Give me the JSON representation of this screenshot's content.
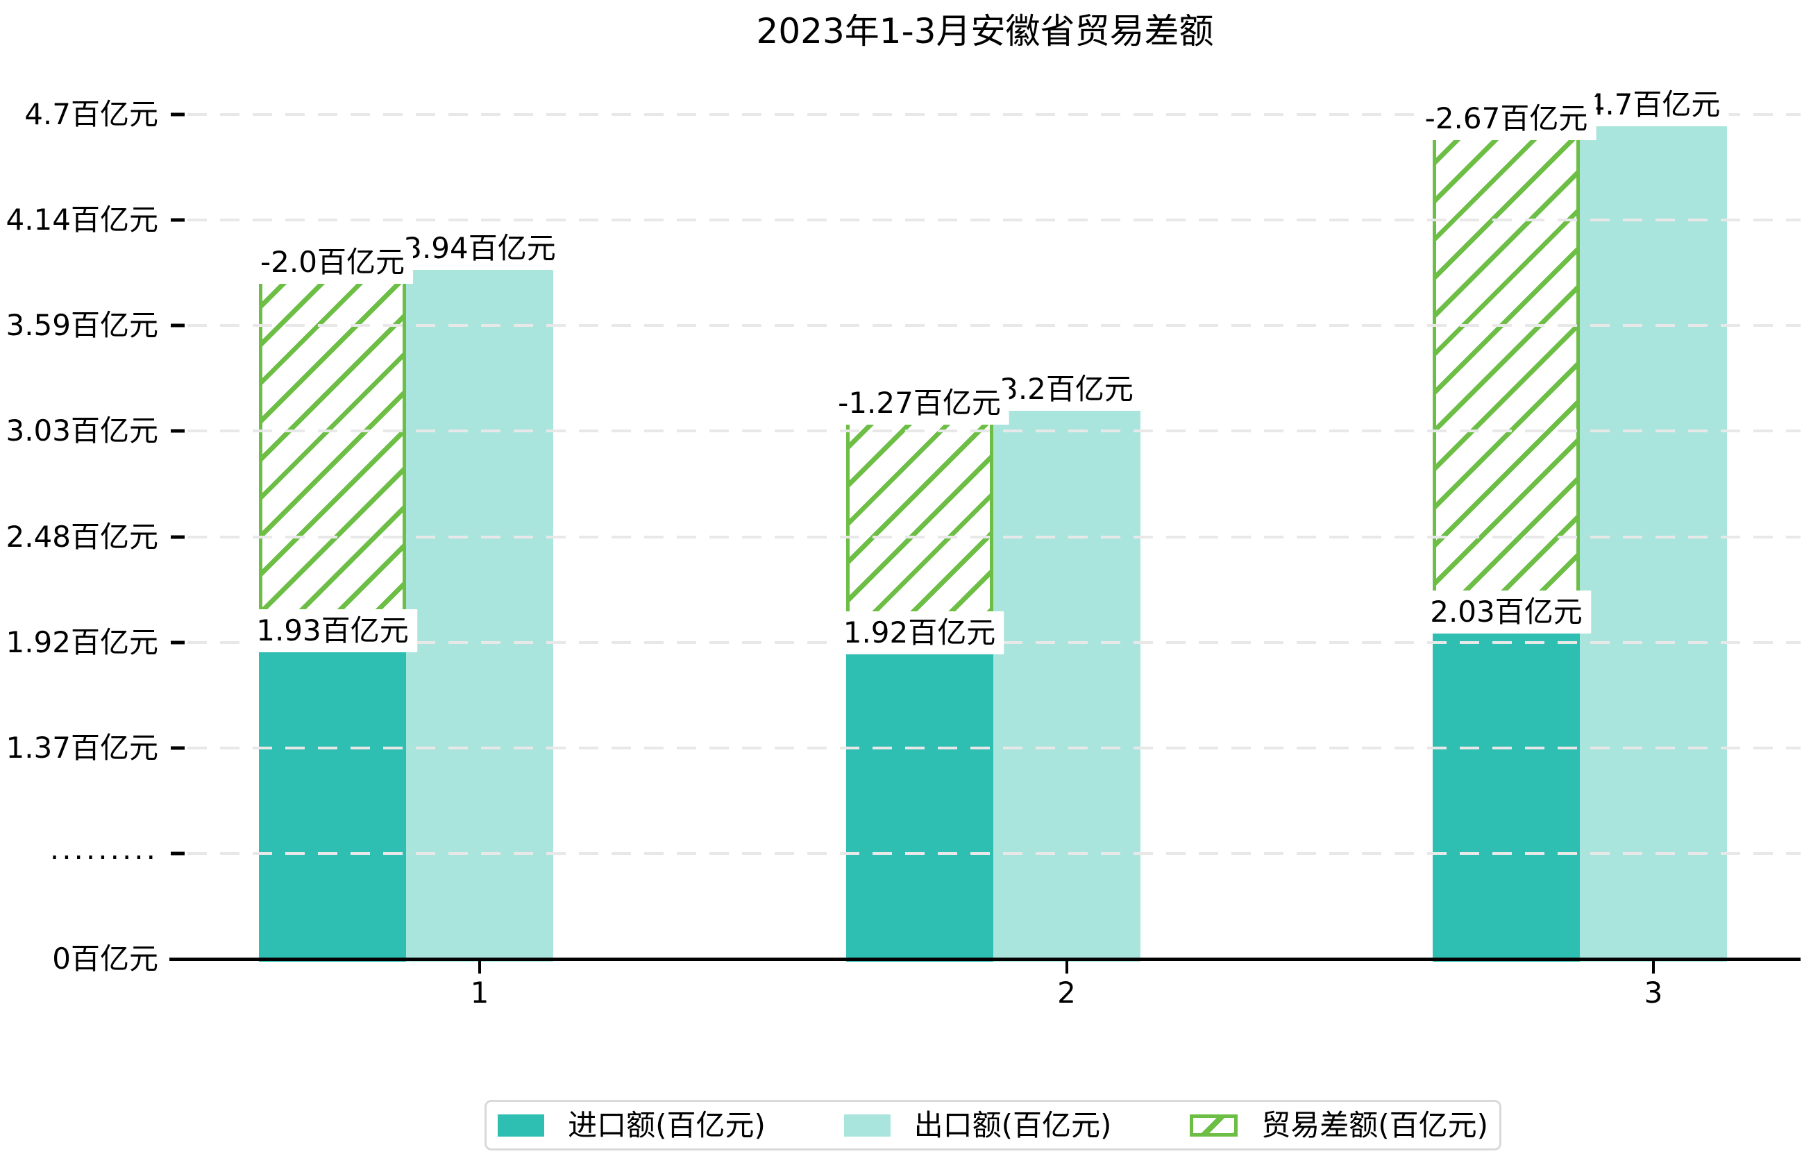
{
  "title": "2023年1-3月安徽省贸易差额",
  "y_axis": {
    "unit": "百亿元",
    "ticks": [
      {
        "label": "0百亿元",
        "value": 0
      },
      {
        "label": ".........",
        "value": null
      },
      {
        "label": "1.37百亿元",
        "value": 1.37
      },
      {
        "label": "1.92百亿元",
        "value": 1.92
      },
      {
        "label": "2.48百亿元",
        "value": 2.48
      },
      {
        "label": "3.03百亿元",
        "value": 3.03
      },
      {
        "label": "3.59百亿元",
        "value": 3.59
      },
      {
        "label": "4.14百亿元",
        "value": 4.14
      },
      {
        "label": "4.7百亿元",
        "value": 4.7
      }
    ]
  },
  "x_axis": {
    "categories": [
      "1",
      "2",
      "3"
    ]
  },
  "chart_data": {
    "type": "bar",
    "title": "2023年1-3月安徽省贸易差额",
    "xlabel": "",
    "ylabel": "",
    "ylim": [
      0,
      4.7
    ],
    "grid": true,
    "legend_position": "bottom",
    "categories": [
      "1",
      "2",
      "3"
    ],
    "series": [
      {
        "name": "进口额(百亿元)",
        "values": [
          1.93,
          1.92,
          2.03
        ],
        "bar_labels": [
          "1.93百亿元",
          "1.92百亿元",
          "2.03百亿元"
        ],
        "color": "#2FBEB2",
        "pattern": "solid"
      },
      {
        "name": "出口额(百亿元)",
        "values": [
          3.94,
          3.2,
          4.7
        ],
        "bar_labels": [
          "3.94百亿元",
          "3.2百亿元",
          "4.7百亿元"
        ],
        "color": "#A9E5DC",
        "pattern": "solid"
      },
      {
        "name": "贸易差额(百亿元)",
        "values": [
          -2.0,
          -1.27,
          -2.67
        ],
        "bar_labels": [
          "-2.0百亿元",
          "-1.27百亿元",
          "-2.67百亿元"
        ],
        "color": "#6CBE45",
        "pattern": "hatch"
      }
    ]
  },
  "legend": {
    "items": [
      {
        "label": "进口额(百亿元)",
        "swatch": "solid-teal"
      },
      {
        "label": "出口额(百亿元)",
        "swatch": "solid-light-teal"
      },
      {
        "label": "贸易差额(百亿元)",
        "swatch": "hatch-green"
      }
    ]
  },
  "colors": {
    "import": "#2FBEB2",
    "export": "#A9E5DC",
    "balance": "#6CBE45",
    "grid": "#E8E8E8",
    "axis": "#000000",
    "label_bg": "#FFFFFF",
    "legend_border": "#D9D9D9"
  }
}
